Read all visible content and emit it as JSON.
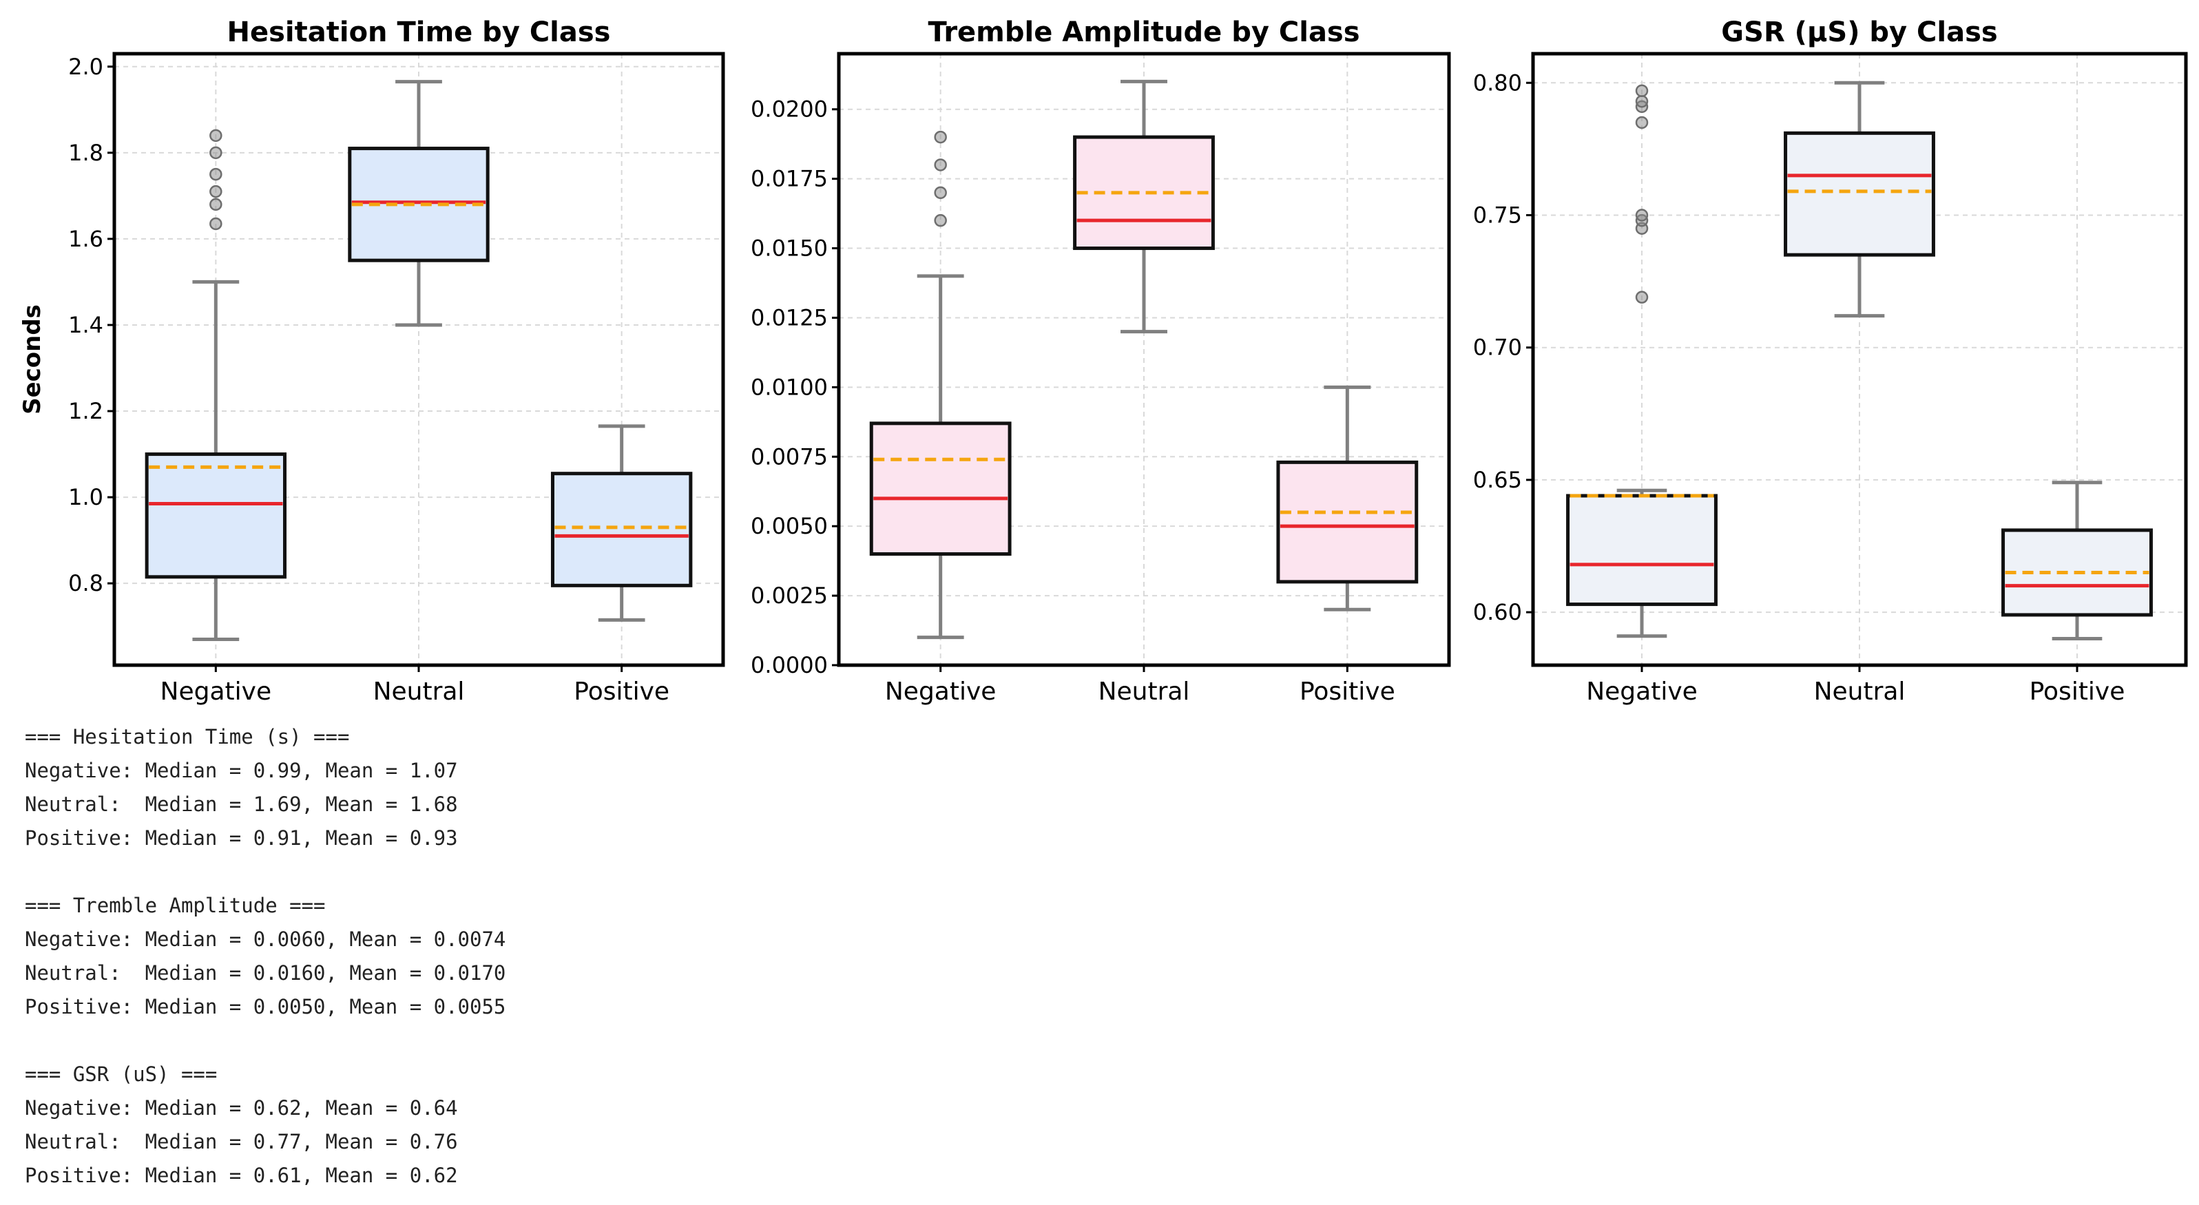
{
  "colors": {
    "median": "#e8262c",
    "mean": "#f5a50f",
    "whisker": "#808080",
    "box_edge": "#111111",
    "flier": "#8c8c8c",
    "grid": "#d9d9d9"
  },
  "chart_data": [
    {
      "type": "boxplot",
      "title": "Hesitation Time by Class",
      "ylabel": "Seconds",
      "xlabel": "",
      "ylim": [
        0.61,
        2.03
      ],
      "yticks": [
        "0.8",
        "1.0",
        "1.2",
        "1.4",
        "1.6",
        "1.8",
        "2.0"
      ],
      "box_color": "#dce9fb",
      "grid": true,
      "categories": [
        "Negative",
        "Neutral",
        "Positive"
      ],
      "boxes": [
        {
          "whislo": 0.67,
          "q1": 0.815,
          "median": 0.985,
          "mean": 1.07,
          "q3": 1.1,
          "whishi": 1.5,
          "fliers": [
            1.635,
            1.68,
            1.71,
            1.75,
            1.8,
            1.84
          ]
        },
        {
          "whislo": 1.4,
          "q1": 1.55,
          "median": 1.685,
          "mean": 1.68,
          "q3": 1.81,
          "whishi": 1.965,
          "fliers": []
        },
        {
          "whislo": 0.715,
          "q1": 0.795,
          "median": 0.91,
          "mean": 0.93,
          "q3": 1.055,
          "whishi": 1.165,
          "fliers": []
        }
      ]
    },
    {
      "type": "boxplot",
      "title": "Tremble Amplitude by Class",
      "ylabel": "",
      "xlabel": "",
      "ylim": [
        0.0,
        0.022
      ],
      "yticks": [
        "0.0000",
        "0.0025",
        "0.0050",
        "0.0075",
        "0.0100",
        "0.0125",
        "0.0150",
        "0.0175",
        "0.0200"
      ],
      "box_color": "#fce4ef",
      "grid": true,
      "categories": [
        "Negative",
        "Neutral",
        "Positive"
      ],
      "boxes": [
        {
          "whislo": 0.001,
          "q1": 0.004,
          "median": 0.006,
          "mean": 0.0074,
          "q3": 0.0087,
          "whishi": 0.014,
          "fliers": [
            0.016,
            0.017,
            0.018,
            0.019
          ]
        },
        {
          "whislo": 0.012,
          "q1": 0.015,
          "median": 0.016,
          "mean": 0.017,
          "q3": 0.019,
          "whishi": 0.021,
          "fliers": []
        },
        {
          "whislo": 0.002,
          "q1": 0.003,
          "median": 0.005,
          "mean": 0.0055,
          "q3": 0.0073,
          "whishi": 0.01,
          "fliers": []
        }
      ]
    },
    {
      "type": "boxplot",
      "title": "GSR (μS) by Class",
      "ylabel": "",
      "xlabel": "",
      "ylim": [
        0.58,
        0.811
      ],
      "yticks": [
        "0.60",
        "0.65",
        "0.70",
        "0.75",
        "0.80"
      ],
      "box_color": "#eef2f8",
      "grid": true,
      "categories": [
        "Negative",
        "Neutral",
        "Positive"
      ],
      "boxes": [
        {
          "whislo": 0.591,
          "q1": 0.603,
          "median": 0.618,
          "mean": 0.644,
          "q3": 0.644,
          "whishi": 0.646,
          "fliers": [
            0.719,
            0.745,
            0.748,
            0.75,
            0.785,
            0.791,
            0.793,
            0.797
          ]
        },
        {
          "whislo": 0.712,
          "q1": 0.735,
          "median": 0.765,
          "mean": 0.759,
          "q3": 0.781,
          "whishi": 0.8,
          "fliers": []
        },
        {
          "whislo": 0.59,
          "q1": 0.599,
          "median": 0.61,
          "mean": 0.615,
          "q3": 0.631,
          "whishi": 0.649,
          "fliers": []
        }
      ]
    }
  ],
  "stats_output": [
    "=== Hesitation Time (s) ===",
    "Negative: Median = 0.99, Mean = 1.07",
    "Neutral:  Median = 1.69, Mean = 1.68",
    "Positive: Median = 0.91, Mean = 0.93",
    "",
    "=== Tremble Amplitude ===",
    "Negative: Median = 0.0060, Mean = 0.0074",
    "Neutral:  Median = 0.0160, Mean = 0.0170",
    "Positive: Median = 0.0050, Mean = 0.0055",
    "",
    "=== GSR (uS) ===",
    "Negative: Median = 0.62, Mean = 0.64",
    "Neutral:  Median = 0.77, Mean = 0.76",
    "Positive: Median = 0.61, Mean = 0.62"
  ]
}
